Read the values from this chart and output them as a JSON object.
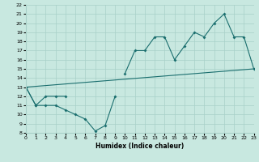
{
  "xlabel": "Humidex (Indice chaleur)",
  "xlim": [
    0,
    23
  ],
  "ylim": [
    8,
    22
  ],
  "xticks": [
    0,
    1,
    2,
    3,
    4,
    5,
    6,
    7,
    8,
    9,
    10,
    11,
    12,
    13,
    14,
    15,
    16,
    17,
    18,
    19,
    20,
    21,
    22,
    23
  ],
  "yticks": [
    8,
    9,
    10,
    11,
    12,
    13,
    14,
    15,
    16,
    17,
    18,
    19,
    20,
    21,
    22
  ],
  "background_color": "#c8e8e0",
  "grid_color": "#a8d0c8",
  "line_color": "#1a6e6e",
  "line1_x": [
    0,
    1,
    2,
    3,
    4,
    5,
    6,
    7,
    8,
    9
  ],
  "line1_y": [
    13,
    11,
    11,
    11,
    10.5,
    10,
    9.5,
    8.2,
    8.8,
    12
  ],
  "line2_x": [
    0,
    1,
    2,
    3,
    4,
    10,
    11,
    12,
    13,
    14,
    15,
    16,
    17,
    18,
    19,
    20,
    21,
    22,
    23
  ],
  "line2_y": [
    13,
    11,
    12,
    12,
    12,
    14.5,
    17,
    17,
    18.5,
    18.5,
    16,
    17.5,
    19,
    18.5,
    20,
    21,
    18.5,
    18.5,
    15
  ],
  "line3_x": [
    0,
    23
  ],
  "line3_y": [
    13,
    15
  ]
}
